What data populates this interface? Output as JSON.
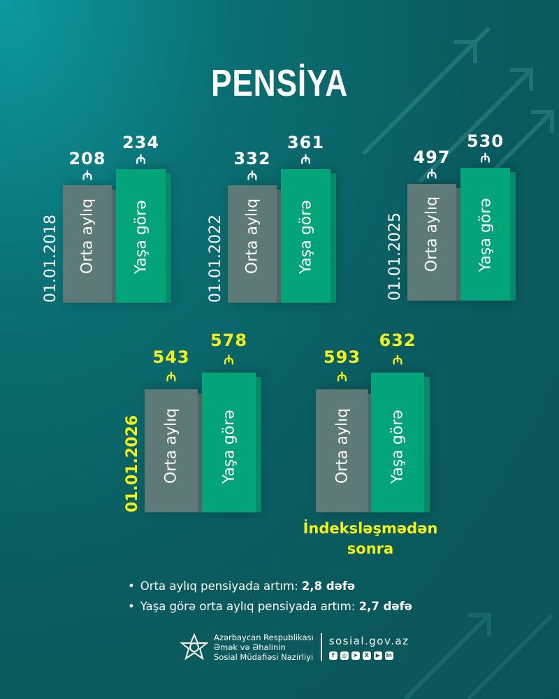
{
  "title": "PENSİYA",
  "currency_symbol": "₼",
  "chart_data": {
    "type": "bar",
    "series_labels": [
      "Orta aylıq",
      "Yaşa görə"
    ],
    "groups": [
      {
        "date": "01.01.2018",
        "values": [
          208,
          234
        ],
        "highlight": false
      },
      {
        "date": "01.01.2022",
        "values": [
          332,
          361
        ],
        "highlight": false
      },
      {
        "date": "01.01.2025",
        "values": [
          497,
          530
        ],
        "highlight": false
      },
      {
        "date": "01.01.2026",
        "values": [
          543,
          578
        ],
        "highlight": true
      },
      {
        "date": "",
        "values": [
          593,
          632
        ],
        "highlight": true
      }
    ],
    "note": "İndeksləşmədən sonra"
  },
  "bullets": [
    {
      "text": "Orta aylıq pensiyada artım: ",
      "value": "2,8 dəfə"
    },
    {
      "text": "Yaşa görə orta aylıq pensiyada artım: ",
      "value": "2,7 dəfə"
    }
  ],
  "footer": {
    "org_lines": [
      "Azərbaycan Respublikası",
      "Əmək və Əhalinin",
      "Sosial Müdafiəsi Nazirliyi"
    ],
    "site": "sosial.gov.az",
    "social_icons": [
      "facebook-icon",
      "instagram-icon",
      "telegram-icon",
      "x-icon",
      "youtube-icon",
      "linkedin-icon"
    ]
  },
  "colors": {
    "background": "#0a5c60",
    "gray_bar": "#5e7a78",
    "green_bar": "#04a47a",
    "highlight": "#f4f01a"
  }
}
